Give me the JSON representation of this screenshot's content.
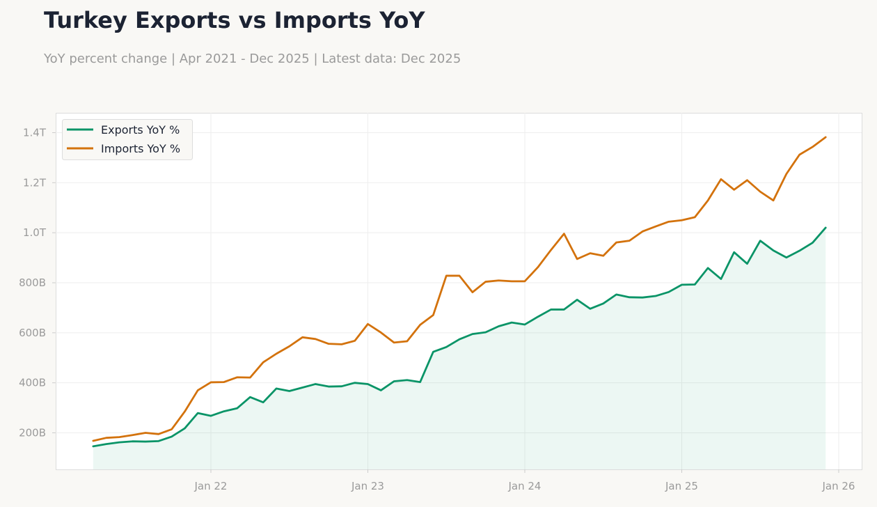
{
  "title": "Turkey Exports vs Imports YoY",
  "subtitle": "YoY percent change | Apr 2021 - Dec 2025 | Latest data: Dec 2025",
  "chart_data": {
    "type": "line",
    "title": "Turkey Exports vs Imports YoY",
    "subtitle": "YoY percent change | Apr 2021 - Dec 2025 | Latest data: Dec 2025",
    "xlabel": "",
    "ylabel": "",
    "grid": true,
    "legend_position": "top-left",
    "x_start": "2021-04",
    "x_end": "2025-12",
    "x_ticks": [
      {
        "date": "2022-01",
        "label": "Jan 22"
      },
      {
        "date": "2023-01",
        "label": "Jan 23"
      },
      {
        "date": "2024-01",
        "label": "Jan 24"
      },
      {
        "date": "2025-01",
        "label": "Jan 25"
      },
      {
        "date": "2026-01",
        "label": "Jan 26"
      }
    ],
    "y_ticks": [
      {
        "value": 200,
        "label": "200B"
      },
      {
        "value": 400,
        "label": "400B"
      },
      {
        "value": 600,
        "label": "600B"
      },
      {
        "value": 800,
        "label": "800B"
      },
      {
        "value": 1000,
        "label": "1.0T"
      },
      {
        "value": 1200,
        "label": "1.2T"
      },
      {
        "value": 1400,
        "label": "1.4T"
      }
    ],
    "ylim": [
      50,
      1480
    ],
    "series": [
      {
        "name": "Exports YoY %",
        "color": "#0a9467",
        "fill": true,
        "values": [
          146,
          155,
          162,
          166,
          165,
          167,
          185,
          218,
          279,
          268,
          286,
          298,
          343,
          322,
          377,
          367,
          381,
          395,
          385,
          386,
          400,
          395,
          370,
          406,
          411,
          403,
          524,
          543,
          574,
          595,
          602,
          626,
          641,
          633,
          664,
          693,
          693,
          732,
          696,
          717,
          753,
          742,
          741,
          747,
          763,
          792,
          793,
          859,
          815,
          922,
          876,
          968,
          929,
          901,
          928,
          960,
          1020
        ]
      },
      {
        "name": "Imports YoY %",
        "color": "#d3720c",
        "fill": false,
        "values": [
          168,
          180,
          183,
          191,
          200,
          195,
          214,
          285,
          370,
          402,
          403,
          422,
          421,
          482,
          516,
          546,
          582,
          575,
          556,
          554,
          568,
          635,
          601,
          561,
          566,
          632,
          671,
          828,
          828,
          762,
          804,
          809,
          806,
          806,
          862,
          931,
          996,
          895,
          918,
          908,
          961,
          968,
          1005,
          1025,
          1044,
          1050,
          1062,
          1129,
          1214,
          1172,
          1210,
          1164,
          1129,
          1235,
          1312,
          1343,
          1382
        ]
      }
    ]
  }
}
